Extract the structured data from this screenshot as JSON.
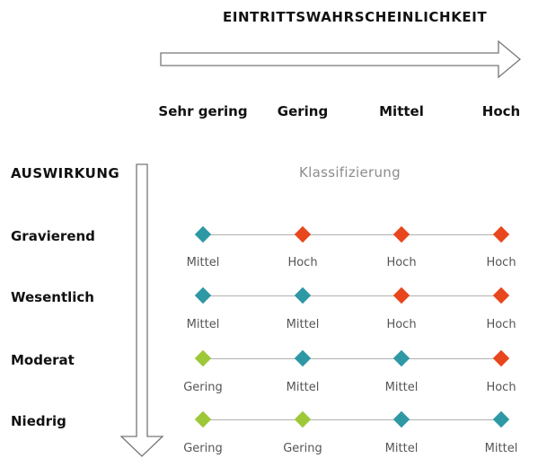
{
  "x_axis": {
    "title": "EINTRITTSWAHRSCHEINLICHKEIT",
    "columns": [
      "Sehr gering",
      "Gering",
      "Mittel",
      "Hoch"
    ]
  },
  "y_axis": {
    "title": "AUSWIRKUNG"
  },
  "header": "Klassifizierung",
  "colors": {
    "Gering": "#9dc838",
    "Mittel": "#2e98a5",
    "Hoch": "#e8461c"
  },
  "rows": [
    {
      "label": "Gravierend",
      "cells": [
        "Mittel",
        "Hoch",
        "Hoch",
        "Hoch"
      ]
    },
    {
      "label": "Wesentlich",
      "cells": [
        "Mittel",
        "Mittel",
        "Hoch",
        "Hoch"
      ]
    },
    {
      "label": "Moderat",
      "cells": [
        "Gering",
        "Mittel",
        "Mittel",
        "Hoch"
      ]
    },
    {
      "label": "Niedrig",
      "cells": [
        "Gering",
        "Gering",
        "Mittel",
        "Mittel"
      ]
    }
  ]
}
